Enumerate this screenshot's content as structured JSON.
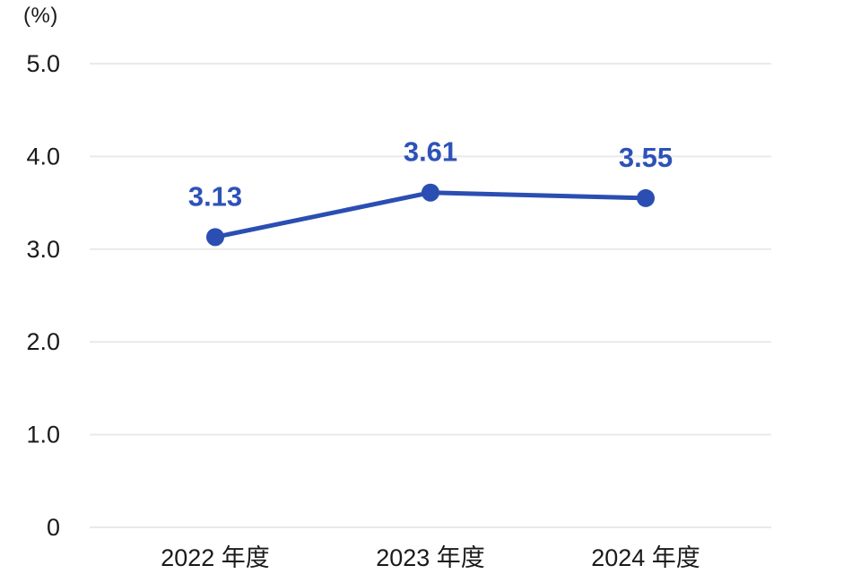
{
  "chart_data": {
    "type": "line",
    "title": "",
    "unit_label": "(%)",
    "categories": [
      "2022 年度",
      "2023 年度",
      "2024 年度"
    ],
    "values": [
      3.13,
      3.61,
      3.55
    ],
    "value_labels": [
      "3.13",
      "3.61",
      "3.55"
    ],
    "xlabel": "",
    "ylabel": "(%)",
    "ylim": [
      0,
      5
    ],
    "y_ticks": [
      {
        "value": 5,
        "label": "5.0"
      },
      {
        "value": 4,
        "label": "4.0"
      },
      {
        "value": 3,
        "label": "3.0"
      },
      {
        "value": 2,
        "label": "2.0"
      },
      {
        "value": 1,
        "label": "1.0"
      },
      {
        "value": 0,
        "label": "0"
      }
    ],
    "grid": true,
    "legend": "none",
    "colors": {
      "line": "#2b4eb2",
      "marker": "#2b4eb2",
      "point_label": "#2d52b8",
      "grid": "#e9e9e9",
      "axis_text": "#1a1a1a",
      "background": "#ffffff"
    }
  }
}
